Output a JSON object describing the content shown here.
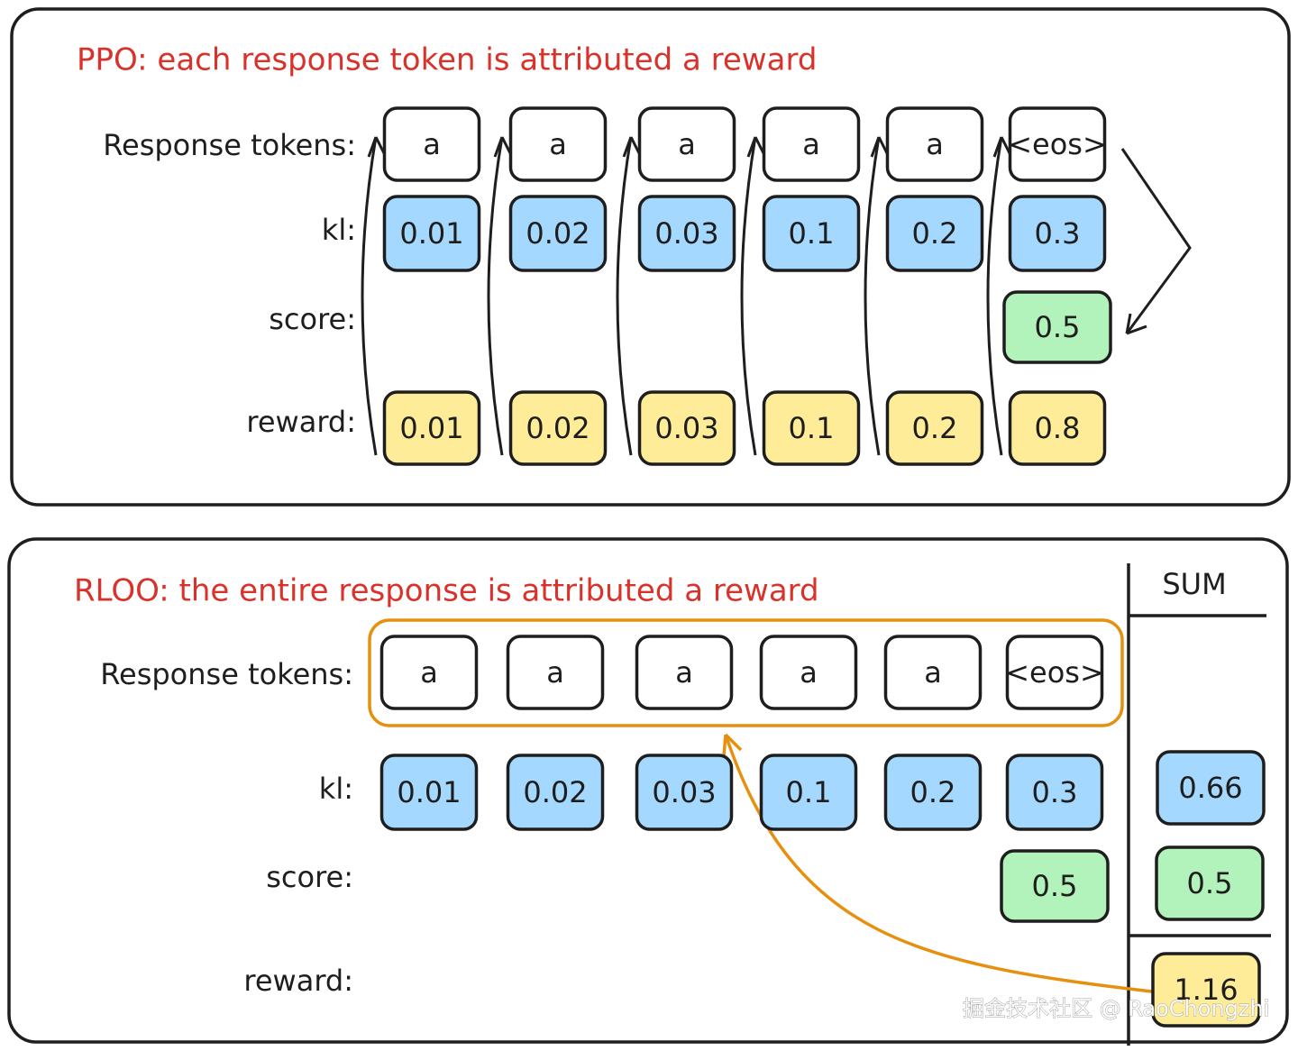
{
  "ppo": {
    "title": "PPO: each response token is attributed a reward",
    "labels": {
      "tokens": "Response tokens:",
      "kl": "kl:",
      "score": "score:",
      "reward": "reward:"
    },
    "tokens": [
      "a",
      "a",
      "a",
      "a",
      "a",
      "<eos>"
    ],
    "kl": [
      0.01,
      0.02,
      0.03,
      0.1,
      0.2,
      0.3
    ],
    "score": 0.5,
    "reward": [
      0.01,
      0.02,
      0.03,
      0.1,
      0.2,
      0.8
    ]
  },
  "rloo": {
    "title": "RLOO: the entire response is attributed a reward",
    "labels": {
      "tokens": "Response tokens:",
      "kl": "kl:",
      "score": "score:",
      "reward": "reward:"
    },
    "tokens": [
      "a",
      "a",
      "a",
      "a",
      "a",
      "<eos>"
    ],
    "kl": [
      0.01,
      0.02,
      0.03,
      0.1,
      0.2,
      0.3
    ],
    "score": 0.5,
    "sum": {
      "header": "SUM",
      "kl": 0.66,
      "score": 0.5,
      "reward": 1.16
    }
  },
  "watermark": "掘金技术社区 @ RaoChongzhi"
}
